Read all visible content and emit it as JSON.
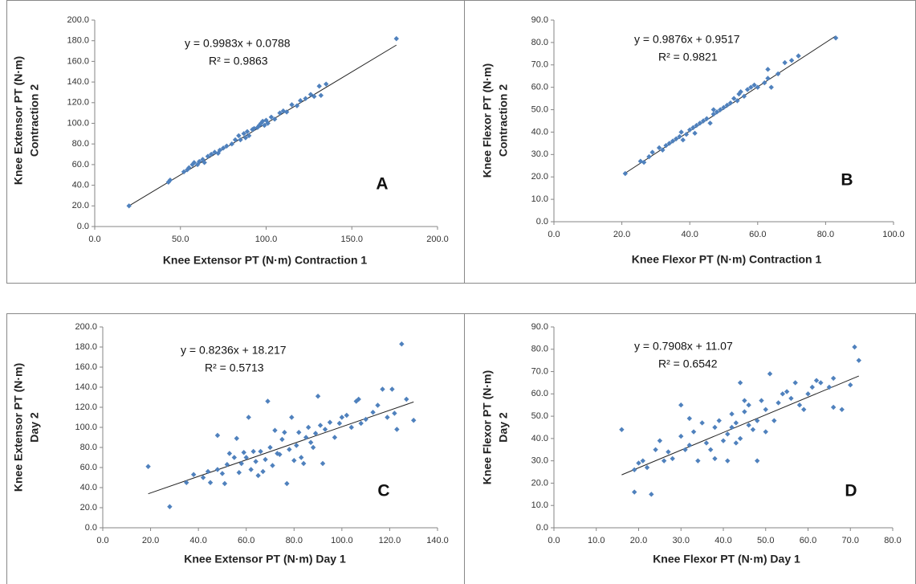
{
  "chart_data": [
    {
      "type": "scatter",
      "panel_label": "A",
      "equation": "y = 0.9983x + 0.0788",
      "r_squared": "R² = 0.9863",
      "trendline": {
        "slope": 0.9983,
        "intercept": 0.0788
      },
      "xlabel": "Knee Extensor PT (N·m) Contraction 1",
      "ylabel": [
        "Knee Extensor PT (N·m)",
        "Contraction 2"
      ],
      "color": "#4f81bd",
      "x": [
        20,
        43,
        44,
        52,
        54,
        55,
        57,
        58,
        60,
        61,
        63,
        64,
        66,
        68,
        70,
        72,
        73,
        75,
        77,
        80,
        82,
        84,
        85,
        87,
        88,
        89,
        90,
        92,
        93,
        95,
        96,
        97,
        98,
        99,
        100,
        101,
        103,
        105,
        108,
        110,
        112,
        115,
        118,
        120,
        123,
        126,
        128,
        131,
        132,
        135,
        176
      ],
      "values": [
        20,
        43,
        45,
        53,
        55,
        57,
        60,
        62,
        60,
        63,
        65,
        62,
        68,
        70,
        72,
        71,
        74,
        76,
        78,
        80,
        84,
        88,
        84,
        90,
        86,
        92,
        88,
        94,
        95,
        96,
        98,
        100,
        102,
        98,
        103,
        100,
        106,
        104,
        110,
        112,
        111,
        118,
        117,
        122,
        124,
        128,
        126,
        136,
        127,
        138,
        182
      ],
      "xlim": [
        0,
        200
      ],
      "xticks": [
        {
          "value": 0,
          "label": "0.0"
        },
        {
          "value": 50,
          "label": "50.0"
        },
        {
          "value": 100,
          "label": "100.0"
        },
        {
          "value": 150,
          "label": "150.0"
        },
        {
          "value": 200,
          "label": "200.0"
        }
      ],
      "ylim": [
        0,
        200
      ],
      "yticks": [
        {
          "value": 0,
          "label": "0.0"
        },
        {
          "value": 20,
          "label": "20.0"
        },
        {
          "value": 40,
          "label": "40.0"
        },
        {
          "value": 60,
          "label": "60.0"
        },
        {
          "value": 80,
          "label": "80.0"
        },
        {
          "value": 100,
          "label": "100.0"
        },
        {
          "value": 120,
          "label": "120.0"
        },
        {
          "value": 140,
          "label": "140.0"
        },
        {
          "value": 160,
          "label": "160.0"
        },
        {
          "value": 180,
          "label": "180.0"
        },
        {
          "value": 200,
          "label": "200.0"
        }
      ]
    },
    {
      "type": "scatter",
      "panel_label": "B",
      "equation": "y = 0.9876x + 0.9517",
      "r_squared": "R² = 0.9821",
      "trendline": {
        "slope": 0.9876,
        "intercept": 0.9517
      },
      "xlabel": "Knee Flexor PT (N·m) Contraction 1",
      "ylabel": [
        "Knee Flexor PT (N·m)",
        "Contraction  2"
      ],
      "color": "#4f81bd",
      "x": [
        21,
        25.5,
        26.5,
        28,
        29,
        31,
        32,
        33,
        34,
        35,
        36,
        37,
        37.5,
        38,
        39,
        40,
        41,
        41.5,
        42,
        43,
        44,
        45,
        46,
        47,
        47,
        48,
        49,
        50,
        51,
        52,
        53,
        54,
        54.5,
        55,
        56,
        57,
        58,
        59,
        60,
        62,
        63,
        63,
        64,
        66,
        68,
        70,
        72,
        83
      ],
      "values": [
        21.5,
        27,
        26.5,
        29,
        31,
        33,
        32,
        34,
        35,
        36,
        37,
        38,
        40,
        36.5,
        39,
        41,
        42,
        39.5,
        43,
        44,
        45,
        46,
        44,
        48,
        50,
        49,
        50,
        51,
        52,
        53,
        55,
        54,
        57,
        58,
        56,
        59,
        60,
        61,
        60,
        62,
        68,
        64,
        60,
        66,
        71,
        72,
        74,
        82
      ],
      "xlim": [
        0,
        100
      ],
      "xticks": [
        {
          "value": 0,
          "label": "0.0"
        },
        {
          "value": 20,
          "label": "20.0"
        },
        {
          "value": 40,
          "label": "40.0"
        },
        {
          "value": 60,
          "label": "60.0"
        },
        {
          "value": 80,
          "label": "80.0"
        },
        {
          "value": 100,
          "label": "100.0"
        }
      ],
      "ylim": [
        0,
        90
      ],
      "yticks": [
        {
          "value": 0,
          "label": "0.0"
        },
        {
          "value": 10,
          "label": "10.0"
        },
        {
          "value": 20,
          "label": "20.0"
        },
        {
          "value": 30,
          "label": "30.0"
        },
        {
          "value": 40,
          "label": "40.0"
        },
        {
          "value": 50,
          "label": "50.0"
        },
        {
          "value": 60,
          "label": "60.0"
        },
        {
          "value": 70,
          "label": "70.0"
        },
        {
          "value": 80,
          "label": "80.0"
        },
        {
          "value": 90,
          "label": "90.0"
        }
      ]
    },
    {
      "type": "scatter",
      "panel_label": "C",
      "equation": "y = 0.8236x + 18.217",
      "r_squared": "R² = 0.5713",
      "trendline": {
        "slope": 0.8236,
        "intercept": 18.217
      },
      "xlabel": "Knee Extensor PT (N·m) Day 1",
      "ylabel": [
        "Knee Extensor PT (N·m)",
        "Day 2"
      ],
      "color": "#4f81bd",
      "x": [
        19,
        28,
        35,
        38,
        42,
        44,
        45,
        48,
        48,
        50,
        51,
        52,
        53,
        55,
        56,
        57,
        58,
        59,
        60,
        61,
        62,
        63,
        64,
        65,
        66,
        67,
        68,
        69,
        70,
        71,
        72,
        73,
        74,
        75,
        76,
        77,
        78,
        79,
        80,
        81,
        82,
        83,
        84,
        85,
        86,
        87,
        88,
        89,
        90,
        91,
        92,
        93,
        95,
        97,
        99,
        100,
        102,
        104,
        106,
        107,
        108,
        110,
        113,
        115,
        117,
        119,
        121,
        122,
        123,
        125,
        127,
        130
      ],
      "values": [
        61,
        21,
        45,
        53,
        50,
        56,
        45,
        92,
        58,
        54,
        44,
        63,
        74,
        70,
        89,
        55,
        64,
        75,
        70,
        110,
        58,
        76,
        66,
        52,
        76,
        56,
        68,
        126,
        80,
        62,
        97,
        74,
        73,
        88,
        95,
        44,
        78,
        110,
        67,
        82,
        95,
        70,
        64,
        90,
        100,
        85,
        80,
        94,
        131,
        102,
        64,
        98,
        105,
        90,
        104,
        110,
        112,
        100,
        126,
        128,
        104,
        108,
        115,
        122,
        138,
        110,
        138,
        114,
        98,
        183,
        128,
        107
      ],
      "xlim": [
        0,
        140
      ],
      "xticks": [
        {
          "value": 0,
          "label": "0.0"
        },
        {
          "value": 20,
          "label": "20.0"
        },
        {
          "value": 40,
          "label": "40.0"
        },
        {
          "value": 60,
          "label": "60.0"
        },
        {
          "value": 80,
          "label": "80.0"
        },
        {
          "value": 100,
          "label": "100.0"
        },
        {
          "value": 120,
          "label": "120.0"
        },
        {
          "value": 140,
          "label": "140.0"
        }
      ],
      "ylim": [
        0,
        200
      ],
      "yticks": [
        {
          "value": 0,
          "label": "0.0"
        },
        {
          "value": 20,
          "label": "20.0"
        },
        {
          "value": 40,
          "label": "40.0"
        },
        {
          "value": 60,
          "label": "60.0"
        },
        {
          "value": 80,
          "label": "80.0"
        },
        {
          "value": 100,
          "label": "100.0"
        },
        {
          "value": 120,
          "label": "120.0"
        },
        {
          "value": 140,
          "label": "140.0"
        },
        {
          "value": 160,
          "label": "160.0"
        },
        {
          "value": 180,
          "label": "180.0"
        },
        {
          "value": 200,
          "label": "200.0"
        }
      ]
    },
    {
      "type": "scatter",
      "panel_label": "D",
      "equation": "y = 0.7908x + 11.07",
      "r_squared": "R² = 0.6542",
      "trendline": {
        "slope": 0.7908,
        "intercept": 11.07
      },
      "xlabel": "Knee Flexor PT (N·m) Day 1",
      "ylabel": [
        "Knee Flexor PT (N·m)",
        "Day 2"
      ],
      "color": "#4f81bd",
      "x": [
        16,
        19,
        19,
        20,
        21,
        22,
        23,
        24,
        25,
        26,
        27,
        28,
        30,
        30,
        31,
        32,
        32,
        33,
        34,
        35,
        36,
        37,
        38,
        38,
        39,
        40,
        41,
        41,
        42,
        42,
        43,
        43,
        44,
        44,
        45,
        45,
        46,
        46,
        47,
        48,
        48,
        49,
        50,
        50,
        51,
        52,
        53,
        54,
        55,
        56,
        57,
        58,
        59,
        60,
        61,
        62,
        63,
        65,
        66,
        66,
        68,
        70,
        71,
        72
      ],
      "values": [
        44,
        16,
        26,
        29,
        30,
        27,
        15,
        35,
        39,
        30,
        34,
        31,
        55,
        41,
        35,
        49,
        37,
        43,
        30,
        47,
        38,
        35,
        45,
        31,
        48,
        39,
        42,
        30,
        45,
        51,
        47,
        38,
        40,
        65,
        52,
        57,
        46,
        55,
        44,
        30,
        48,
        57,
        43,
        53,
        69,
        48,
        56,
        60,
        61,
        58,
        65,
        55,
        53,
        60,
        63,
        66,
        65,
        63,
        67,
        54,
        53,
        64,
        81,
        75
      ],
      "xlim": [
        0,
        80
      ],
      "xticks": [
        {
          "value": 0,
          "label": "0.0"
        },
        {
          "value": 10,
          "label": "10.0"
        },
        {
          "value": 20,
          "label": "20.0"
        },
        {
          "value": 30,
          "label": "30.0"
        },
        {
          "value": 40,
          "label": "40.0"
        },
        {
          "value": 50,
          "label": "50.0"
        },
        {
          "value": 60,
          "label": "60.0"
        },
        {
          "value": 70,
          "label": "70.0"
        },
        {
          "value": 80,
          "label": "80.0"
        }
      ],
      "ylim": [
        0,
        90
      ],
      "yticks": [
        {
          "value": 0,
          "label": "0.0"
        },
        {
          "value": 10,
          "label": "10.0"
        },
        {
          "value": 20,
          "label": "20.0"
        },
        {
          "value": 30,
          "label": "30.0"
        },
        {
          "value": 40,
          "label": "40.0"
        },
        {
          "value": 50,
          "label": "50.0"
        },
        {
          "value": 60,
          "label": "60.0"
        },
        {
          "value": 70,
          "label": "70.0"
        },
        {
          "value": 80,
          "label": "80.0"
        },
        {
          "value": 90,
          "label": "90.0"
        }
      ]
    }
  ]
}
